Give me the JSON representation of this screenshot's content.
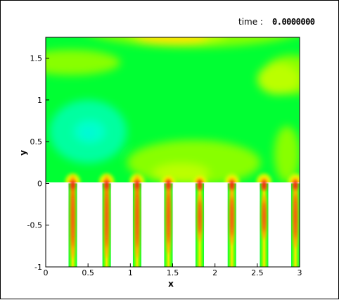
{
  "header": {
    "time_label": "time :",
    "time_value": "0.0000000"
  },
  "chart_data": {
    "type": "heatmap",
    "title": "",
    "xlabel": "x",
    "ylabel": "y",
    "xlim": [
      0,
      3
    ],
    "ylim": [
      -1,
      1.75
    ],
    "x_ticks": [
      {
        "value": 0,
        "label": "0"
      },
      {
        "value": 0.5,
        "label": "0.5"
      },
      {
        "value": 1,
        "label": "1"
      },
      {
        "value": 1.5,
        "label": "1.5"
      },
      {
        "value": 2,
        "label": "2"
      },
      {
        "value": 2.5,
        "label": "2.5"
      },
      {
        "value": 3,
        "label": "3"
      }
    ],
    "y_ticks": [
      {
        "value": -1,
        "label": "-1"
      },
      {
        "value": -0.5,
        "label": "-0.5"
      },
      {
        "value": 0,
        "label": "0"
      },
      {
        "value": 0.5,
        "label": "0.5"
      },
      {
        "value": 1,
        "label": "1"
      },
      {
        "value": 1.5,
        "label": "1.5"
      }
    ],
    "channels_x": [
      0.32,
      0.72,
      1.08,
      1.45,
      1.82,
      2.2,
      2.58,
      2.95
    ],
    "channel_half_width": 0.05,
    "channel_depth": -1,
    "colors": {
      "background": "#00ff33",
      "light_green": "#88ff00",
      "yellow_green": "#bbff00",
      "yellow": "#ffe600",
      "orange": "#ff9900",
      "red": "#ee2211",
      "cyan_green": "#00ffa0",
      "cyan": "#00e8e8"
    }
  }
}
